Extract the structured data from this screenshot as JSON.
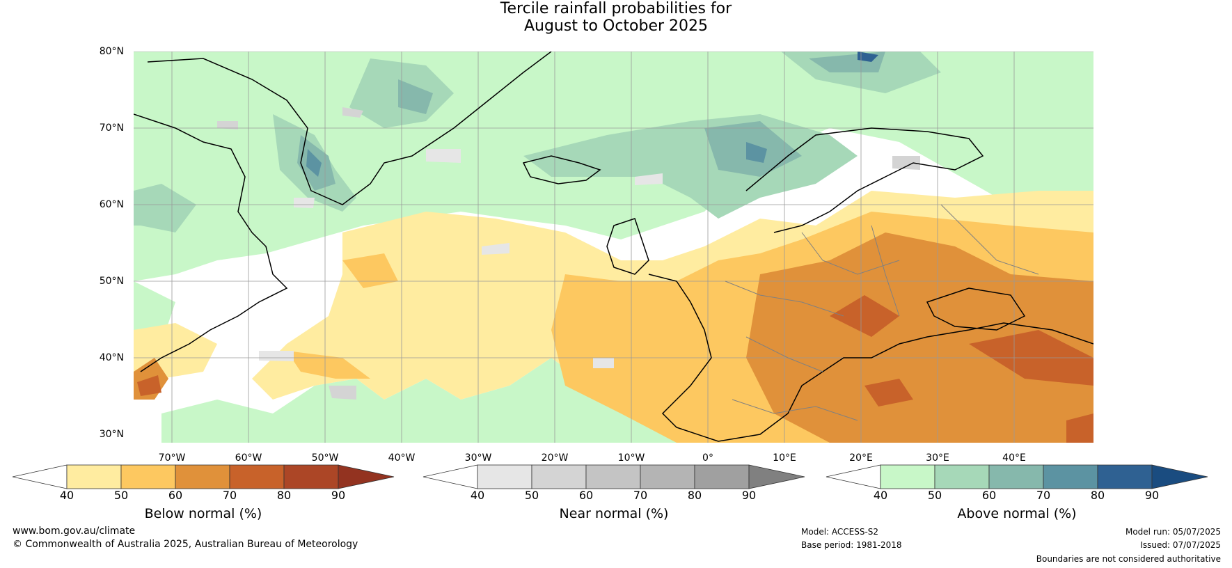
{
  "title": {
    "line1": "Tercile rainfall probabilities for",
    "line2": "August to October 2025"
  },
  "map": {
    "lat_labels": [
      "80°N",
      "70°N",
      "60°N",
      "50°N",
      "40°N",
      "30°N"
    ],
    "lon_labels": [
      "70°W",
      "60°W",
      "50°W",
      "40°W",
      "30°W",
      "20°W",
      "10°W",
      "0°",
      "10°E",
      "20°E",
      "30°E",
      "40°E"
    ],
    "grid_color": "#999999",
    "coast_color": "#000000",
    "border_color": "#808080"
  },
  "colorbars": [
    {
      "title": "Below normal (%)",
      "ticks": [
        "40",
        "50",
        "60",
        "70",
        "80",
        "90"
      ],
      "colors": [
        "#ffffff",
        "#ffeca0",
        "#fdc860",
        "#e0913a",
        "#c8622a",
        "#ac4626",
        "#933320"
      ]
    },
    {
      "title": "Near normal (%)",
      "ticks": [
        "40",
        "50",
        "60",
        "70",
        "80",
        "90"
      ],
      "colors": [
        "#ffffff",
        "#e6e6e6",
        "#d4d4d4",
        "#c4c4c4",
        "#b4b4b4",
        "#a0a0a0",
        "#808080"
      ]
    },
    {
      "title": "Above normal (%)",
      "ticks": [
        "40",
        "50",
        "60",
        "70",
        "80",
        "90"
      ],
      "colors": [
        "#ffffff",
        "#c8f7c8",
        "#a6d8b8",
        "#86b8ac",
        "#5c93a2",
        "#2f6192",
        "#1a4c80"
      ]
    }
  ],
  "footer": {
    "website": "www.bom.gov.au/climate",
    "copyright": "© Commonwealth of Australia 2025, Australian Bureau of Meteorology",
    "model": "Model: ACCESS-S2",
    "base_period": "Base period: 1981-2018",
    "model_run": "Model run: 05/07/2025",
    "issued": "Issued: 07/07/2025",
    "disclaimer": "Boundaries are not considered authoritative"
  }
}
